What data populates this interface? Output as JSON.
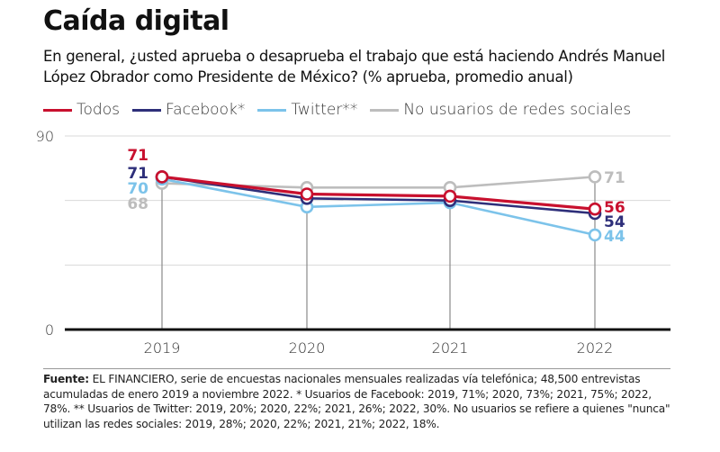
{
  "header": {
    "title": "Caída digital",
    "subtitle": "En general, ¿usted aprueba o desaprueba el trabajo que está haciendo Andrés Manuel López Obrador como Presidente de México?  (% aprueba, promedio anual)"
  },
  "footnote": {
    "label": "Fuente:",
    "text": " EL FINANCIERO, serie de encuestas nacionales mensuales realizadas vía telefónica; 48,500 entrevistas acumuladas de enero 2019 a noviembre 2022. * Usuarios de Facebook: 2019, 71%; 2020, 73%; 2021, 75%; 2022, 78%. ** Usuarios de Twitter: 2019, 20%; 2020, 22%; 2021, 26%; 2022, 30%. No usuarios se refiere a quienes \"nunca\" utilizan las redes sociales: 2019, 28%; 2020, 22%; 2021, 21%; 2022, 18%."
  },
  "chart_data": {
    "type": "line",
    "title": "Caída digital",
    "xlabel": "",
    "ylabel": "% aprueba, promedio anual",
    "categories": [
      "2019",
      "2020",
      "2021",
      "2022"
    ],
    "ylim": [
      0,
      90
    ],
    "yticks": [
      0,
      30,
      60,
      90
    ],
    "ytick_labels": [
      "0",
      "",
      "",
      "90"
    ],
    "grid": true,
    "legend_position": "top-left",
    "series": [
      {
        "name": "No usuarios de redes sociales",
        "color": "#bdbdbd",
        "values": [
          68,
          66,
          66,
          71
        ],
        "labels": [
          "68",
          null,
          null,
          "71"
        ]
      },
      {
        "name": "Twitter**",
        "color": "#7cc3ea",
        "values": [
          70,
          57,
          59,
          44
        ],
        "labels": [
          "70",
          null,
          null,
          "44"
        ]
      },
      {
        "name": "Facebook*",
        "color": "#2e2f7a",
        "values": [
          71,
          61,
          60,
          54
        ],
        "labels": [
          "71",
          null,
          null,
          "54"
        ]
      },
      {
        "name": "Todos",
        "color": "#c8102e",
        "values": [
          71,
          63,
          62,
          56
        ],
        "labels": [
          "71",
          null,
          null,
          "56"
        ]
      }
    ],
    "legend_order": [
      "Todos",
      "Facebook*",
      "Twitter**",
      "No usuarios de redes sociales"
    ]
  }
}
